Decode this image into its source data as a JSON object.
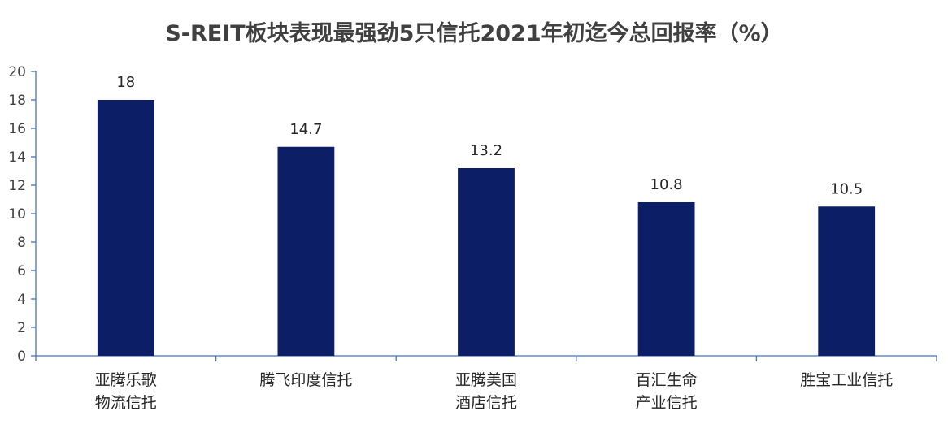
{
  "chart_data": {
    "type": "bar",
    "title": "S-REIT板块表现最强劲5只信托2021年初迄今总回报率（%）",
    "categories": [
      [
        "亚腾乐歌",
        "物流信托"
      ],
      [
        "腾飞印度信托"
      ],
      [
        "亚腾美国",
        "酒店信托"
      ],
      [
        "百汇生命",
        "产业信托"
      ],
      [
        "胜宝工业信托"
      ]
    ],
    "values": [
      18,
      14.7,
      13.2,
      10.8,
      10.5
    ],
    "data_labels": [
      "18",
      "14.7",
      "13.2",
      "10.8",
      "10.5"
    ],
    "xlabel": "",
    "ylabel": "",
    "ylim": [
      0,
      20
    ],
    "yticks": [
      "0",
      "2",
      "4",
      "6",
      "8",
      "10",
      "12",
      "14",
      "16",
      "18",
      "20"
    ],
    "grid": false,
    "legend": "none",
    "bar_color": "#0C1F66",
    "axis_color": "#4472C4"
  }
}
